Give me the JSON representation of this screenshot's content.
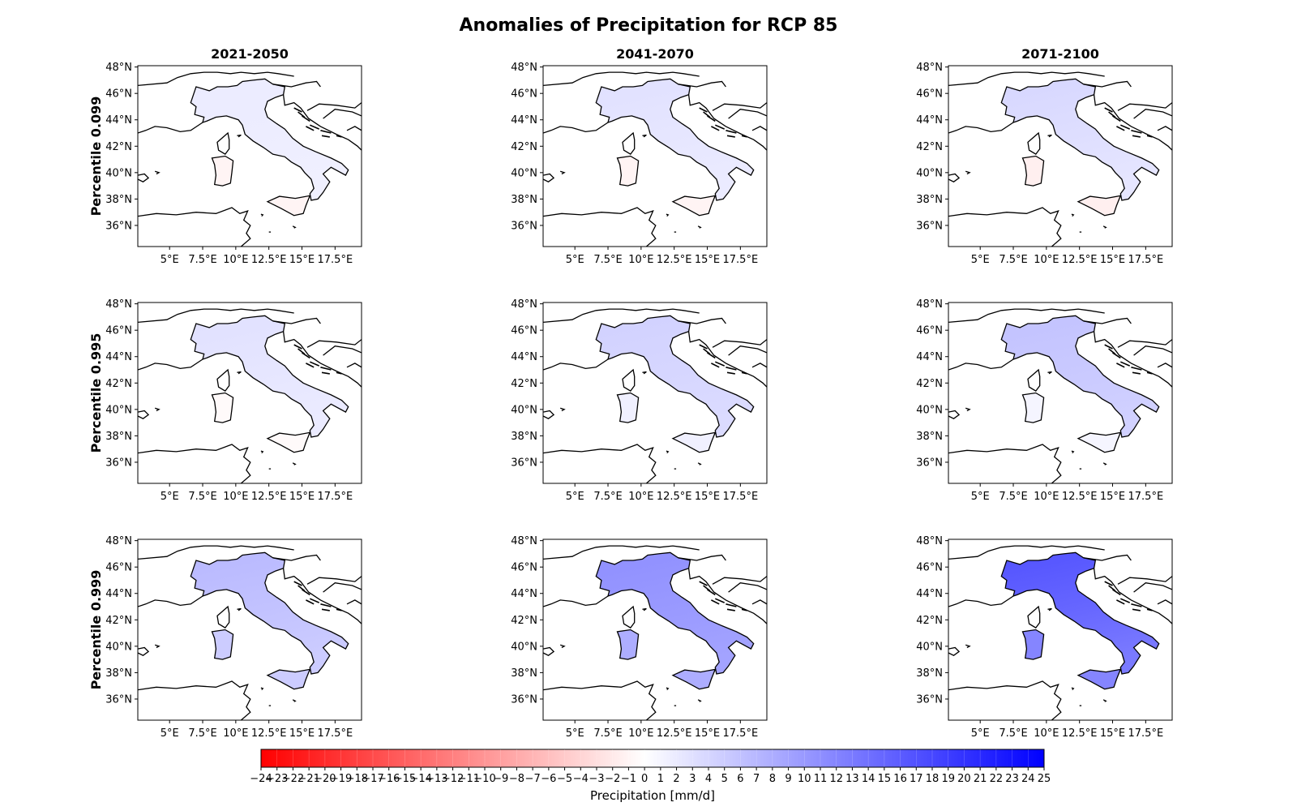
{
  "title": "Anomalies of Precipitation for RCP 85",
  "chart_data": {
    "type": "heatmap",
    "title": "Anomalies of Precipitation for RCP 85",
    "subtype": "map-grid",
    "region": "Italy",
    "columns": [
      "2021-2050",
      "2041-2070",
      "2071-2100"
    ],
    "rows": [
      "Percentile 0.099",
      "Percentile 0.995",
      "Percentile 0.999"
    ],
    "lon_ticks": [
      "5°E",
      "7.5°E",
      "10°E",
      "12.5°E",
      "15°E",
      "17.5°E"
    ],
    "lat_ticks": [
      "48°N",
      "46°N",
      "44°N",
      "42°N",
      "40°N",
      "38°N",
      "36°N"
    ],
    "lon_range": [
      2.6,
      19.5
    ],
    "lat_range": [
      34.4,
      48.1
    ],
    "colorbar": {
      "label": "Precipitation [mm/d]",
      "range": [
        -24,
        25
      ],
      "ticks": [
        "−24",
        "−23",
        "−22",
        "−21",
        "−20",
        "−19",
        "−18",
        "−17",
        "−16",
        "−15",
        "−14",
        "−13",
        "−12",
        "−11",
        "−10",
        "−9",
        "−8",
        "−7",
        "−6",
        "−5",
        "−4",
        "−3",
        "−2",
        "−1",
        "0",
        "1",
        "2",
        "3",
        "4",
        "5",
        "6",
        "7",
        "8",
        "9",
        "10",
        "11",
        "12",
        "13",
        "14",
        "15",
        "16",
        "17",
        "18",
        "19",
        "20",
        "21",
        "22",
        "23",
        "24",
        "25"
      ],
      "low_color": "#ff0000",
      "mid_color": "#ffffff",
      "high_color": "#0000ff"
    },
    "panels": [
      {
        "row": 0,
        "col": 0,
        "north": 2.0,
        "south": 1.5,
        "islands": -1.0
      },
      {
        "row": 0,
        "col": 1,
        "north": 3.0,
        "south": 2.0,
        "islands": -1.0
      },
      {
        "row": 0,
        "col": 2,
        "north": 4.0,
        "south": 2.5,
        "islands": -1.5
      },
      {
        "row": 1,
        "col": 0,
        "north": 3.0,
        "south": 2.0,
        "islands": -0.5
      },
      {
        "row": 1,
        "col": 1,
        "north": 4.5,
        "south": 3.5,
        "islands": 1.5
      },
      {
        "row": 1,
        "col": 2,
        "north": 6.0,
        "south": 4.5,
        "islands": 1.0
      },
      {
        "row": 2,
        "col": 0,
        "north": 7.0,
        "south": 5.0,
        "islands": 5.0
      },
      {
        "row": 2,
        "col": 1,
        "north": 11.0,
        "south": 9.0,
        "islands": 8.0
      },
      {
        "row": 2,
        "col": 2,
        "north": 17.0,
        "south": 13.0,
        "islands": 12.0
      }
    ]
  }
}
